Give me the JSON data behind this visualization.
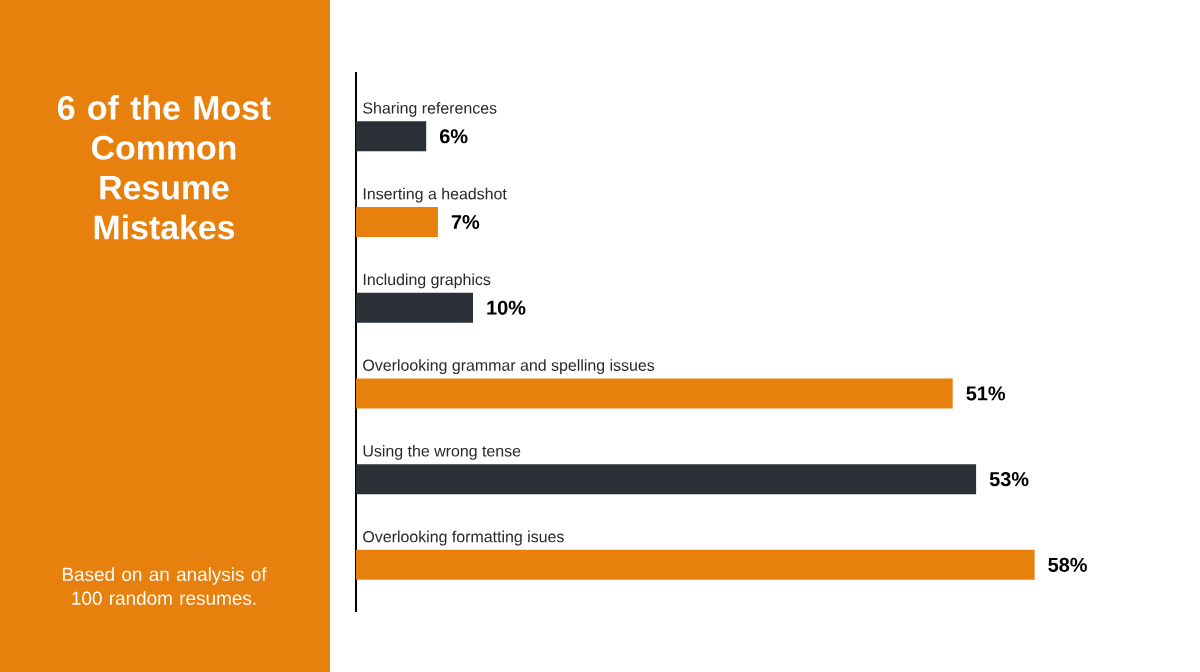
{
  "chart_data": {
    "type": "bar",
    "orientation": "horizontal",
    "title": "6 of the Most Common Resume Mistakes",
    "subtitle": "Based on an analysis of 100 random resumes.",
    "categories": [
      "Sharing references",
      "Inserting a headshot",
      "Including graphics",
      "Overlooking grammar and spelling issues",
      "Using the wrong tense",
      "Overlooking formatting isues"
    ],
    "values": [
      6,
      7,
      10,
      51,
      53,
      58
    ],
    "value_labels": [
      "6%",
      "7%",
      "10%",
      "51%",
      "53%",
      "58%"
    ],
    "colors": [
      "#2b2f36",
      "#e8800e",
      "#2b2f36",
      "#e8800e",
      "#2b2f36",
      "#e8800e"
    ]
  }
}
